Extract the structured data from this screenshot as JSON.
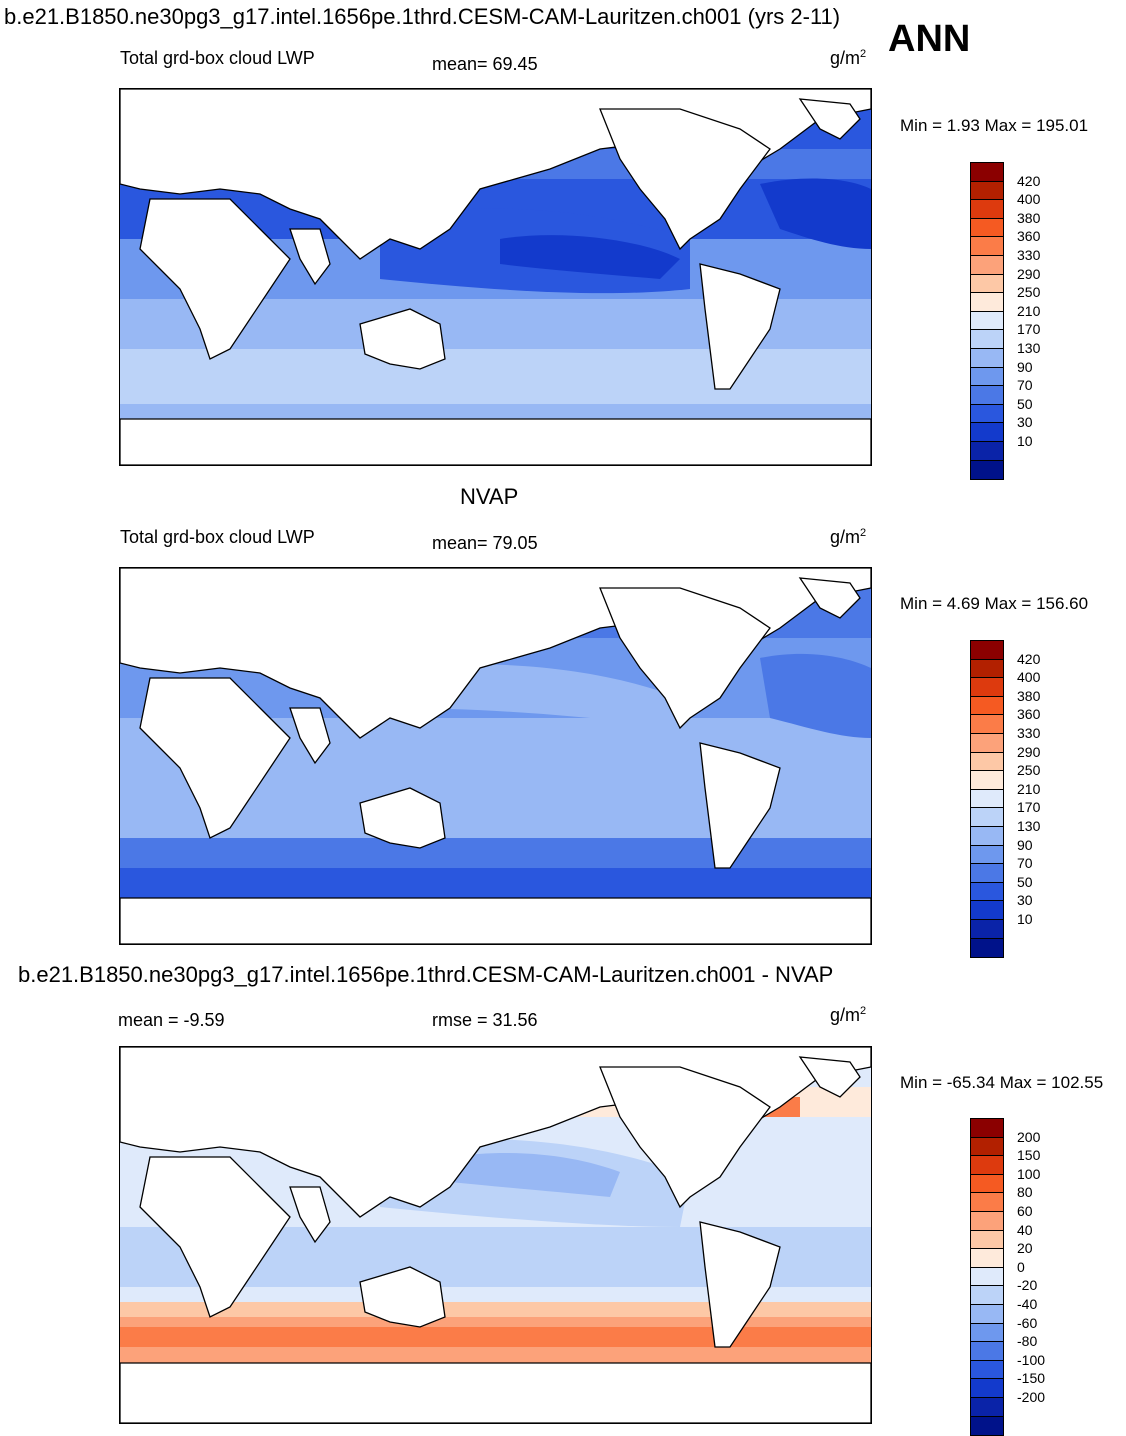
{
  "header": {
    "title": "b.e21.B1850.ne30pg3_g17.intel.1656pe.1thrd.CESM-CAM-Lauritzen.ch001 (yrs 2-11)",
    "season": "ANN"
  },
  "panels": [
    {
      "variable": "Total grd-box cloud LWP",
      "stat_text": "mean=  69.45",
      "units": "g/m",
      "units_sup": "2",
      "minmax": "Min =    1.93 Max = 195.01",
      "colorbar_labels": [
        "420",
        "400",
        "380",
        "360",
        "330",
        "290",
        "250",
        "210",
        "170",
        "130",
        "90",
        "70",
        "50",
        "30",
        "10"
      ]
    },
    {
      "caption": "NVAP",
      "variable": "Total grd-box cloud LWP",
      "stat_text": "mean=  79.05",
      "units": "g/m",
      "units_sup": "2",
      "minmax": "Min =    4.69 Max = 156.60",
      "colorbar_labels": [
        "420",
        "400",
        "380",
        "360",
        "330",
        "290",
        "250",
        "210",
        "170",
        "130",
        "90",
        "70",
        "50",
        "30",
        "10"
      ]
    },
    {
      "caption": "b.e21.B1850.ne30pg3_g17.intel.1656pe.1thrd.CESM-CAM-Lauritzen.ch001 - NVAP",
      "variable": "mean =  -9.59",
      "stat_text": "rmse =  31.56",
      "units": "g/m",
      "units_sup": "2",
      "minmax": "Min = -65.34 Max = 102.55",
      "colorbar_labels": [
        "200",
        "150",
        "100",
        "80",
        "60",
        "40",
        "20",
        "0",
        "-20",
        "-40",
        "-60",
        "-80",
        "-100",
        "-150",
        "-200"
      ]
    }
  ],
  "colors": {
    "scale": [
      "#8b0000",
      "#b22000",
      "#dd3a0e",
      "#f55a22",
      "#fb7c48",
      "#fca27a",
      "#fdc8a6",
      "#feeadb",
      "#dfeafb",
      "#bcd3f8",
      "#98b8f4",
      "#6e98ee",
      "#4b78e6",
      "#2a57de",
      "#133acc",
      "#0a23a8",
      "#00128a"
    ],
    "land": "#ffffff",
    "coast": "#000000"
  }
}
